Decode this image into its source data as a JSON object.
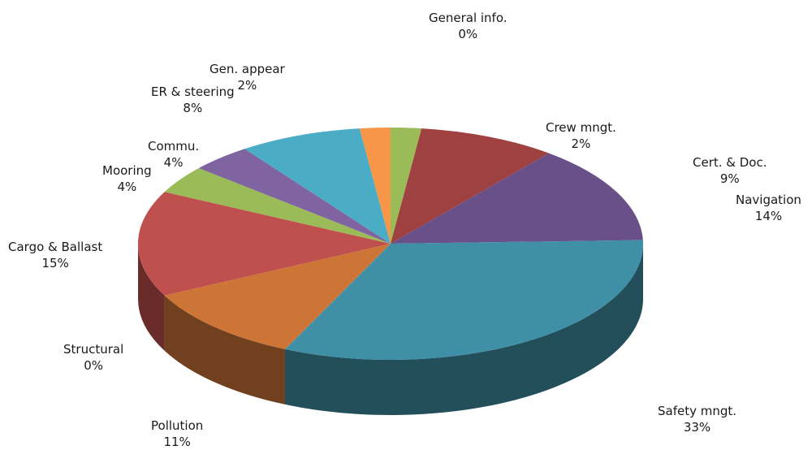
{
  "chart_data": {
    "type": "pie",
    "style": "3d",
    "categories": [
      "General info.",
      "Crew mngt.",
      "Cert. & Doc.",
      "Navigation",
      "Safety mngt.",
      "Pollution",
      "Structural",
      "Cargo & Ballast",
      "Mooring",
      "Commu.",
      "ER & steering",
      "Gen. appear"
    ],
    "values": [
      0,
      2,
      9,
      14,
      33,
      11,
      0,
      15,
      4,
      4,
      8,
      2
    ],
    "labels": [
      "0%",
      "2%",
      "9%",
      "14%",
      "33%",
      "11%",
      "0%",
      "15%",
      "4%",
      "4%",
      "8%",
      "2%"
    ],
    "colors": [
      "#8064a2",
      "#9bbb59",
      "#9e4140",
      "#6a5089",
      "#3f8fa6",
      "#cd7536",
      "#8e8e8e",
      "#c0504d",
      "#9bbb59",
      "#8064a2",
      "#4aacc5",
      "#f79646"
    ],
    "legend": "none"
  }
}
